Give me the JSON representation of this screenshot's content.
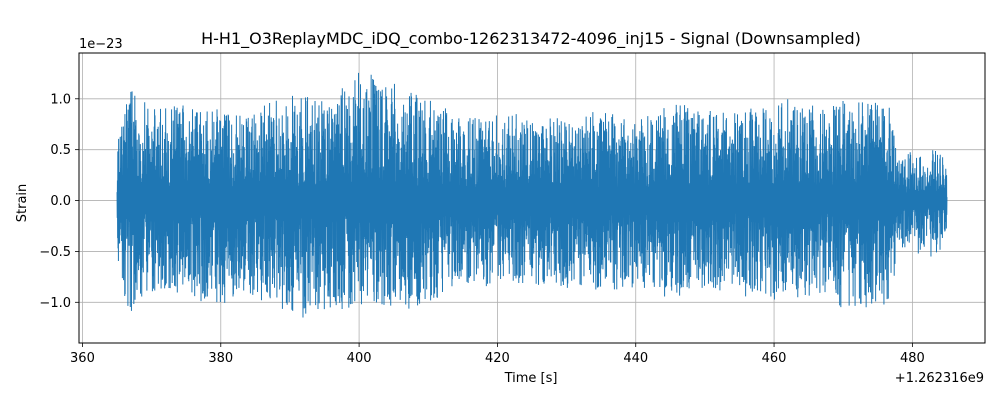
{
  "chart_data": {
    "type": "line",
    "title": "H-H1_O3ReplayMDC_iDQ_combo-1262313472-4096_inj15 - Signal (Downsampled)",
    "xlabel": "Time [s]",
    "ylabel": "Strain",
    "x_offset_label": "+1.262316e9",
    "y_scale_label": "1e−23",
    "xlim": [
      359.5,
      490.5
    ],
    "ylim": [
      -1.4,
      1.45
    ],
    "x_ticks": [
      360,
      380,
      400,
      420,
      440,
      460,
      480
    ],
    "x_tick_labels": [
      "360",
      "380",
      "400",
      "420",
      "440",
      "460",
      "480"
    ],
    "y_ticks": [
      -1.0,
      -0.5,
      0.0,
      0.5,
      1.0
    ],
    "y_tick_labels": [
      "−1.0",
      "−0.5",
      "0.0",
      "0.5",
      "1.0"
    ],
    "grid": true,
    "line_color": "#1f77b4",
    "series": [
      {
        "x_start": 365.0,
        "x_end": 485.0,
        "envelope_x": [
          365,
          367,
          370,
          373,
          376,
          380,
          384,
          388,
          392,
          396,
          400,
          404,
          408,
          412,
          414,
          418,
          422,
          426,
          430,
          434,
          438,
          442,
          446,
          450,
          454,
          458,
          462,
          466,
          470,
          474,
          477,
          478,
          480,
          482,
          484,
          485
        ],
        "envelope_max": [
          0.65,
          1.15,
          0.95,
          1.0,
          1.0,
          0.95,
          0.9,
          1.05,
          1.1,
          1.05,
          1.35,
          1.2,
          1.1,
          1.05,
          0.9,
          0.85,
          0.9,
          0.85,
          0.95,
          0.9,
          0.9,
          0.95,
          1.0,
          0.9,
          0.95,
          0.95,
          1.05,
          1.0,
          1.0,
          1.05,
          1.0,
          0.45,
          0.55,
          0.5,
          0.55,
          0.3
        ],
        "envelope_min": [
          -0.8,
          -1.15,
          -0.95,
          -0.95,
          -1.0,
          -1.1,
          -1.05,
          -1.05,
          -1.25,
          -1.1,
          -1.2,
          -1.15,
          -1.15,
          -1.0,
          -0.85,
          -0.9,
          -0.85,
          -0.9,
          -0.9,
          -0.95,
          -0.9,
          -0.95,
          -1.0,
          -0.95,
          -0.95,
          -1.05,
          -1.0,
          -1.0,
          -1.1,
          -1.15,
          -1.05,
          -0.5,
          -0.55,
          -0.6,
          -0.55,
          -0.3
        ]
      }
    ]
  }
}
